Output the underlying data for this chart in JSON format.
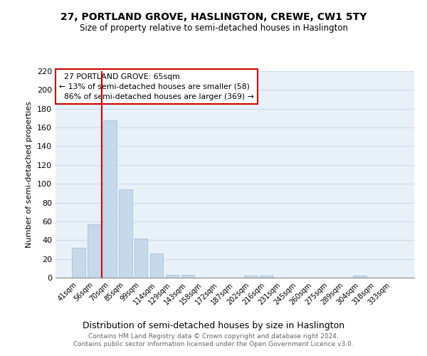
{
  "title1": "27, PORTLAND GROVE, HASLINGTON, CREWE, CW1 5TY",
  "title2": "Size of property relative to semi-detached houses in Haslington",
  "xlabel": "Distribution of semi-detached houses by size in Haslington",
  "ylabel": "Number of semi-detached properties",
  "categories": [
    "41sqm",
    "56sqm",
    "70sqm",
    "85sqm",
    "99sqm",
    "114sqm",
    "129sqm",
    "143sqm",
    "158sqm",
    "172sqm",
    "187sqm",
    "202sqm",
    "216sqm",
    "231sqm",
    "245sqm",
    "260sqm",
    "275sqm",
    "289sqm",
    "304sqm",
    "318sqm",
    "333sqm"
  ],
  "values": [
    32,
    57,
    168,
    94,
    42,
    26,
    3,
    3,
    0,
    0,
    0,
    2,
    2,
    0,
    0,
    0,
    0,
    0,
    2,
    0,
    0
  ],
  "bar_color": "#c5d9ea",
  "bar_edge_color": "#a8c4d8",
  "property_size": "65sqm",
  "pct_smaller": 13,
  "count_smaller": 58,
  "pct_larger": 86,
  "count_larger": 369,
  "annotation_label": "27 PORTLAND GROVE: 65sqm",
  "ylim": [
    0,
    220
  ],
  "yticks": [
    0,
    20,
    40,
    60,
    80,
    100,
    120,
    140,
    160,
    180,
    200,
    220
  ],
  "footer": "Contains HM Land Registry data © Crown copyright and database right 2024.\nContains public sector information licensed under the Open Government Licence v3.0.",
  "grid_color": "#ccddee",
  "background_color": "#e8f0f8",
  "vline_color": "#cc0000",
  "box_color": "#cc0000",
  "vline_x": 1.5
}
